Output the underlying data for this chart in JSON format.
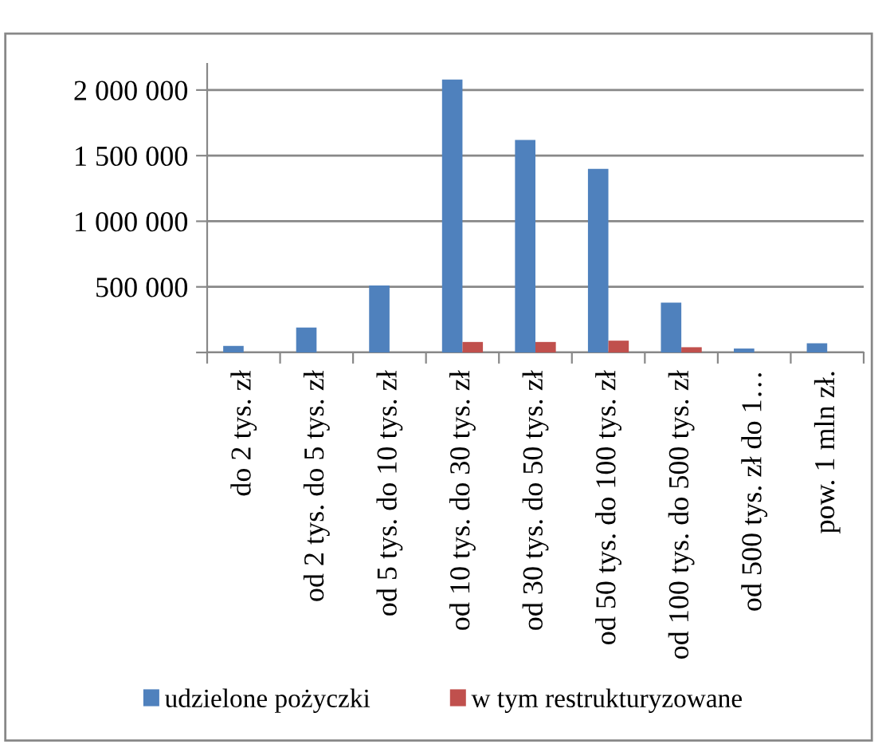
{
  "chart_data": {
    "type": "bar",
    "categories": [
      "do 2 tys. zł",
      "od 2 tys. do 5 tys. zł",
      "od 5 tys. do 10 tys. zł",
      "od 10 tys. do 30 tys. zł",
      "od 30 tys. do 50 tys. zł",
      "od 50 tys. do 100 tys. zł",
      "od 100 tys. do 500 tys. zł",
      "od 500 tys. zł do 1…",
      "pow. 1 mln zł."
    ],
    "series": [
      {
        "name": "udzielone pożyczki",
        "color": "#4f81bd",
        "values": [
          50000,
          190000,
          510000,
          2080000,
          1620000,
          1400000,
          380000,
          30000,
          70000
        ]
      },
      {
        "name": "w tym restrukturyzowane",
        "color": "#c0504d",
        "values": [
          0,
          0,
          null,
          80000,
          80000,
          90000,
          40000,
          0,
          0
        ]
      }
    ],
    "ylim": [
      0,
      2200000
    ],
    "yticks": [
      {
        "value": 0,
        "label": null
      },
      {
        "value": 500000,
        "label": "500 000"
      },
      {
        "value": 1000000,
        "label": "1 000 000"
      },
      {
        "value": 1500000,
        "label": "1 500 000"
      },
      {
        "value": 2000000,
        "label": "2 000 000"
      }
    ],
    "grid": "y",
    "legend": "bottom"
  }
}
